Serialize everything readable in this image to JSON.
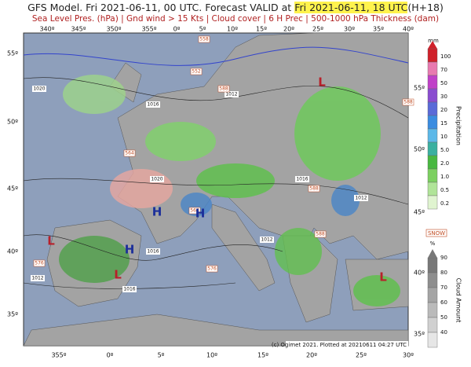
{
  "header": {
    "title_prefix": "GFS Model. Fri 2021-06-11, 00 UTC. Forecast VALID at",
    "title_valid": "Fri 2021-06-11, 18 UTC",
    "title_suffix": "(H+18)",
    "subtitle": "Sea Level Pres. (hPa) | Gnd wind > 15 Kts | Cloud cover | 6 H Prec | 500-1000 hPa Thickness (dam)"
  },
  "map": {
    "lon_top": [
      "340º",
      "345º",
      "350º",
      "355º",
      "0º",
      "5º",
      "10º",
      "15º",
      "20º",
      "25º",
      "30º",
      "35º",
      "40º"
    ],
    "lon_bottom": [
      "355º",
      "0º",
      "5º",
      "10º",
      "15º",
      "20º",
      "25º",
      "30º"
    ],
    "lat_left": [
      "55º",
      "50º",
      "45º",
      "40º",
      "35º"
    ],
    "lat_right": [
      "55º",
      "50º",
      "45º",
      "40º",
      "35º"
    ],
    "isobars": [
      "1020",
      "1016",
      "1012",
      "1020",
      "1016",
      "1012",
      "1016",
      "1012",
      "1016",
      "1012"
    ],
    "thickness": [
      "558",
      "552",
      "588",
      "588",
      "588",
      "588",
      "576",
      "564",
      "564",
      "576"
    ],
    "highs": [
      "H",
      "H",
      "H"
    ],
    "lows": [
      "L",
      "L",
      "L",
      "L"
    ],
    "credit": "(c) Ogimet 2021. Plotted at 20210611 04:27 UTC"
  },
  "legend": {
    "precip_unit": "mm",
    "precip_title": "Precipitation",
    "precip_levels": [
      "100",
      "70",
      "50",
      "30",
      "20",
      "15",
      "10",
      "5.0",
      "2.0",
      "1.0",
      "0.5",
      "0.2"
    ],
    "snow": "SNOW",
    "cloud_unit": "%",
    "cloud_title": "Cloud Amount",
    "cloud_levels": [
      "90",
      "80",
      "70",
      "60",
      "50",
      "40"
    ]
  }
}
